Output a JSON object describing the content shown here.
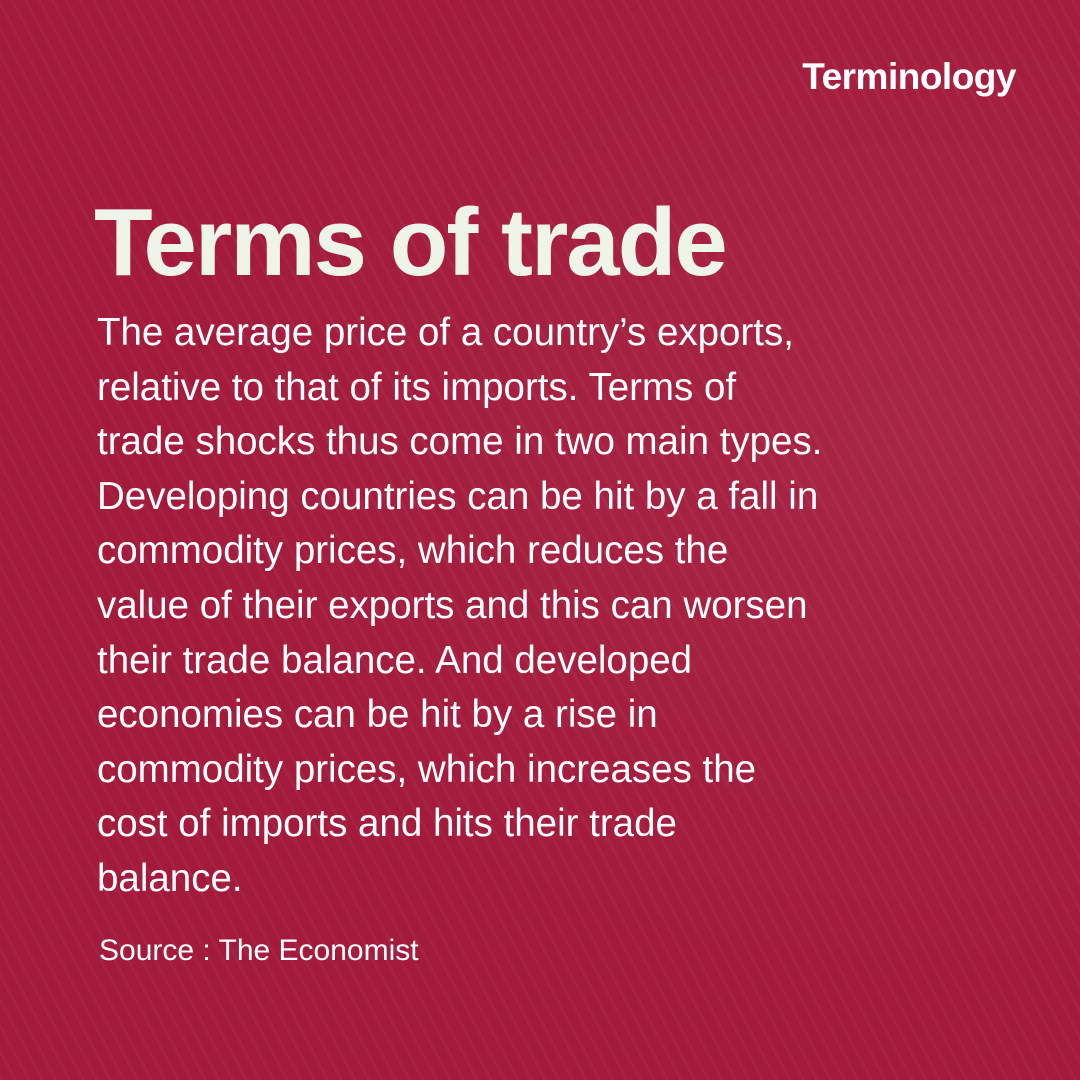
{
  "tag": "Terminology",
  "title": "Terms of trade",
  "body_lines": [
    "The average price of a country’s exports,",
    "relative to that of its imports. Terms of",
    "trade shocks thus come in two main types.",
    "Developing countries can be hit by a fall in",
    "commodity prices, which reduces the",
    "value of their exports and this can worsen",
    "their trade balance. And developed",
    "economies can be hit by a rise in",
    "commodity prices, which increases the",
    "cost of imports and hits their trade",
    "balance."
  ],
  "source": "Source : The Economist",
  "colors": {
    "background": "#a31a3c",
    "title": "#eef4e8",
    "text": "#ffffff"
  }
}
